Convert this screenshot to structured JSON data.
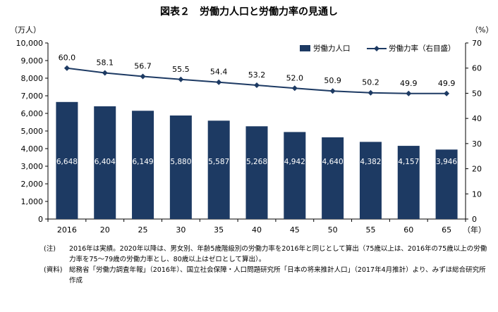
{
  "title": "図表２　労働力人口と労働力率の見通し",
  "unit_left": "（万人）",
  "unit_right": "（%）",
  "notes": [
    {
      "head": "(注)",
      "body": "2016年は実績。2020年以降は、男女別、年齢5歳階級別の労働力率を2016年と同じとして算出（75歳以上は、2016年の75歳以上の労働力率を75～79歳の労働力率とし、80歳以上はゼロとして算出）。"
    },
    {
      "head": "(資料)",
      "body": "総務省「労働力調査年報」（2016年）、国立社会保障・人口問題研究所「日本の将来推計人口」（2017年4月推計）より、みずほ総合研究所作成"
    }
  ],
  "colors": {
    "bar": "#1d3a63",
    "line": "#1d3a63",
    "axis": "#000000",
    "bar_label": "#ffffff"
  },
  "chart_data": {
    "type": "bar",
    "categories": [
      "2016",
      "20",
      "25",
      "30",
      "35",
      "40",
      "45",
      "50",
      "55",
      "60",
      "65"
    ],
    "x_unit": "（年）",
    "series": [
      {
        "name": "労働力人口",
        "type": "bar",
        "axis": "left",
        "values": [
          6648,
          6404,
          6149,
          5880,
          5587,
          5268,
          4942,
          4640,
          4382,
          4157,
          3946
        ],
        "labels": [
          "6,648",
          "6,404",
          "6,149",
          "5,880",
          "5,587",
          "5,268",
          "4,942",
          "4,640",
          "4,382",
          "4,157",
          "3,946"
        ]
      },
      {
        "name": "労働力率（右目盛）",
        "type": "line",
        "axis": "right",
        "values": [
          60.0,
          58.1,
          56.7,
          55.5,
          54.4,
          53.2,
          52.0,
          50.9,
          50.2,
          49.9,
          49.9
        ],
        "labels": [
          "60.0",
          "58.1",
          "56.7",
          "55.5",
          "54.4",
          "53.2",
          "52.0",
          "50.9",
          "50.2",
          "49.9",
          "49.9"
        ]
      }
    ],
    "y_left": {
      "min": 0,
      "max": 10000,
      "step": 1000,
      "ticks": [
        "0",
        "1,000",
        "2,000",
        "3,000",
        "4,000",
        "5,000",
        "6,000",
        "7,000",
        "8,000",
        "9,000",
        "10,000"
      ]
    },
    "y_right": {
      "min": 0,
      "max": 70,
      "step": 10,
      "ticks": [
        "0",
        "10",
        "20",
        "30",
        "40",
        "50",
        "60",
        "70"
      ]
    },
    "legend_position": "top-right",
    "grid": false
  }
}
